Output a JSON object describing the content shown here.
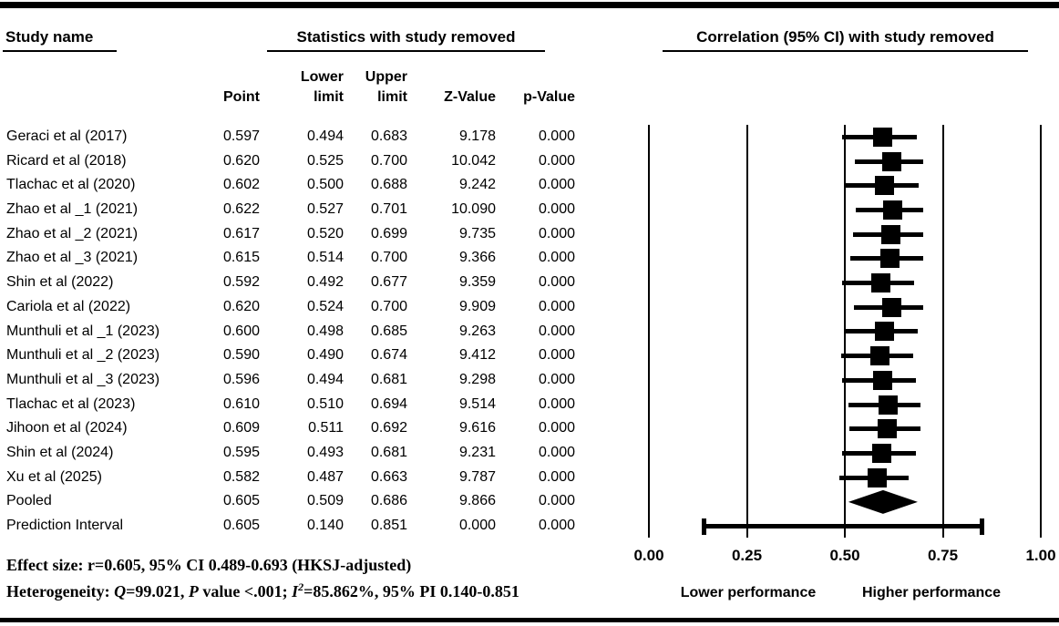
{
  "header": {
    "study_col": "Study name",
    "stats_col": "Statistics with study removed",
    "plot_col": "Correlation (95% CI) with study removed"
  },
  "columns": {
    "lower_top": "Lower",
    "upper_top": "Upper",
    "point": "Point",
    "lower_bottom": "limit",
    "upper_bottom": "limit",
    "z": "Z-Value",
    "p": "p-Value"
  },
  "chart_data": {
    "type": "forest",
    "x_range": [
      0,
      1
    ],
    "x_ticks": [
      "0.00",
      "0.25",
      "0.50",
      "0.75",
      "1.00"
    ],
    "axis_label_left": "Lower performance",
    "axis_label_right": "Higher performance",
    "grid": "vertical-lines-at-ticks",
    "rows": [
      {
        "study": "Geraci et al (2017)",
        "point": "0.597",
        "lower": "0.494",
        "upper": "0.683",
        "z": "9.178",
        "p": "0.000",
        "marker": "square"
      },
      {
        "study": "Ricard et al (2018)",
        "point": "0.620",
        "lower": "0.525",
        "upper": "0.700",
        "z": "10.042",
        "p": "0.000",
        "marker": "square"
      },
      {
        "study": "Tlachac et al (2020)",
        "point": "0.602",
        "lower": "0.500",
        "upper": "0.688",
        "z": "9.242",
        "p": "0.000",
        "marker": "square"
      },
      {
        "study": "Zhao et al _1 (2021)",
        "point": "0.622",
        "lower": "0.527",
        "upper": "0.701",
        "z": "10.090",
        "p": "0.000",
        "marker": "square"
      },
      {
        "study": "Zhao et al _2 (2021)",
        "point": "0.617",
        "lower": "0.520",
        "upper": "0.699",
        "z": "9.735",
        "p": "0.000",
        "marker": "square"
      },
      {
        "study": "Zhao et al _3 (2021)",
        "point": "0.615",
        "lower": "0.514",
        "upper": "0.700",
        "z": "9.366",
        "p": "0.000",
        "marker": "square"
      },
      {
        "study": "Shin et al (2022)",
        "point": "0.592",
        "lower": "0.492",
        "upper": "0.677",
        "z": "9.359",
        "p": "0.000",
        "marker": "square"
      },
      {
        "study": "Cariola et al (2022)",
        "point": "0.620",
        "lower": "0.524",
        "upper": "0.700",
        "z": "9.909",
        "p": "0.000",
        "marker": "square"
      },
      {
        "study": "Munthuli et al _1 (2023)",
        "point": "0.600",
        "lower": "0.498",
        "upper": "0.685",
        "z": "9.263",
        "p": "0.000",
        "marker": "square"
      },
      {
        "study": "Munthuli et al _2 (2023)",
        "point": "0.590",
        "lower": "0.490",
        "upper": "0.674",
        "z": "9.412",
        "p": "0.000",
        "marker": "square"
      },
      {
        "study": "Munthuli et al _3 (2023)",
        "point": "0.596",
        "lower": "0.494",
        "upper": "0.681",
        "z": "9.298",
        "p": "0.000",
        "marker": "square"
      },
      {
        "study": "Tlachac et al (2023)",
        "point": "0.610",
        "lower": "0.510",
        "upper": "0.694",
        "z": "9.514",
        "p": "0.000",
        "marker": "square"
      },
      {
        "study": "Jihoon et al (2024)",
        "point": "0.609",
        "lower": "0.511",
        "upper": "0.692",
        "z": "9.616",
        "p": "0.000",
        "marker": "square"
      },
      {
        "study": "Shin et al (2024)",
        "point": "0.595",
        "lower": "0.493",
        "upper": "0.681",
        "z": "9.231",
        "p": "0.000",
        "marker": "square"
      },
      {
        "study": "Xu et al (2025)",
        "point": "0.582",
        "lower": "0.487",
        "upper": "0.663",
        "z": "9.787",
        "p": "0.000",
        "marker": "square"
      },
      {
        "study": "Pooled",
        "point": "0.605",
        "lower": "0.509",
        "upper": "0.686",
        "z": "9.866",
        "p": "0.000",
        "marker": "diamond"
      },
      {
        "study": "Prediction Interval",
        "point": "0.605",
        "lower": "0.140",
        "upper": "0.851",
        "z": "0.000",
        "p": "0.000",
        "marker": "interval"
      }
    ]
  },
  "footnote": {
    "line1": "Effect size: r=0.605, 95% CI 0.489-0.693 (HKSJ-adjusted)",
    "line2_segments": [
      {
        "text": "Heterogeneity: "
      },
      {
        "text": "Q",
        "italic": true
      },
      {
        "text": "=99.021, "
      },
      {
        "text": "P",
        "italic": true
      },
      {
        "text": " value <.001; "
      },
      {
        "text": "I",
        "italic": true
      },
      {
        "text": "2",
        "italic": true,
        "sup": true
      },
      {
        "text": "=85.862%, 95% PI 0.140-0.851"
      }
    ]
  },
  "colors": {
    "foreground": "#000000",
    "background": "#ffffff"
  }
}
